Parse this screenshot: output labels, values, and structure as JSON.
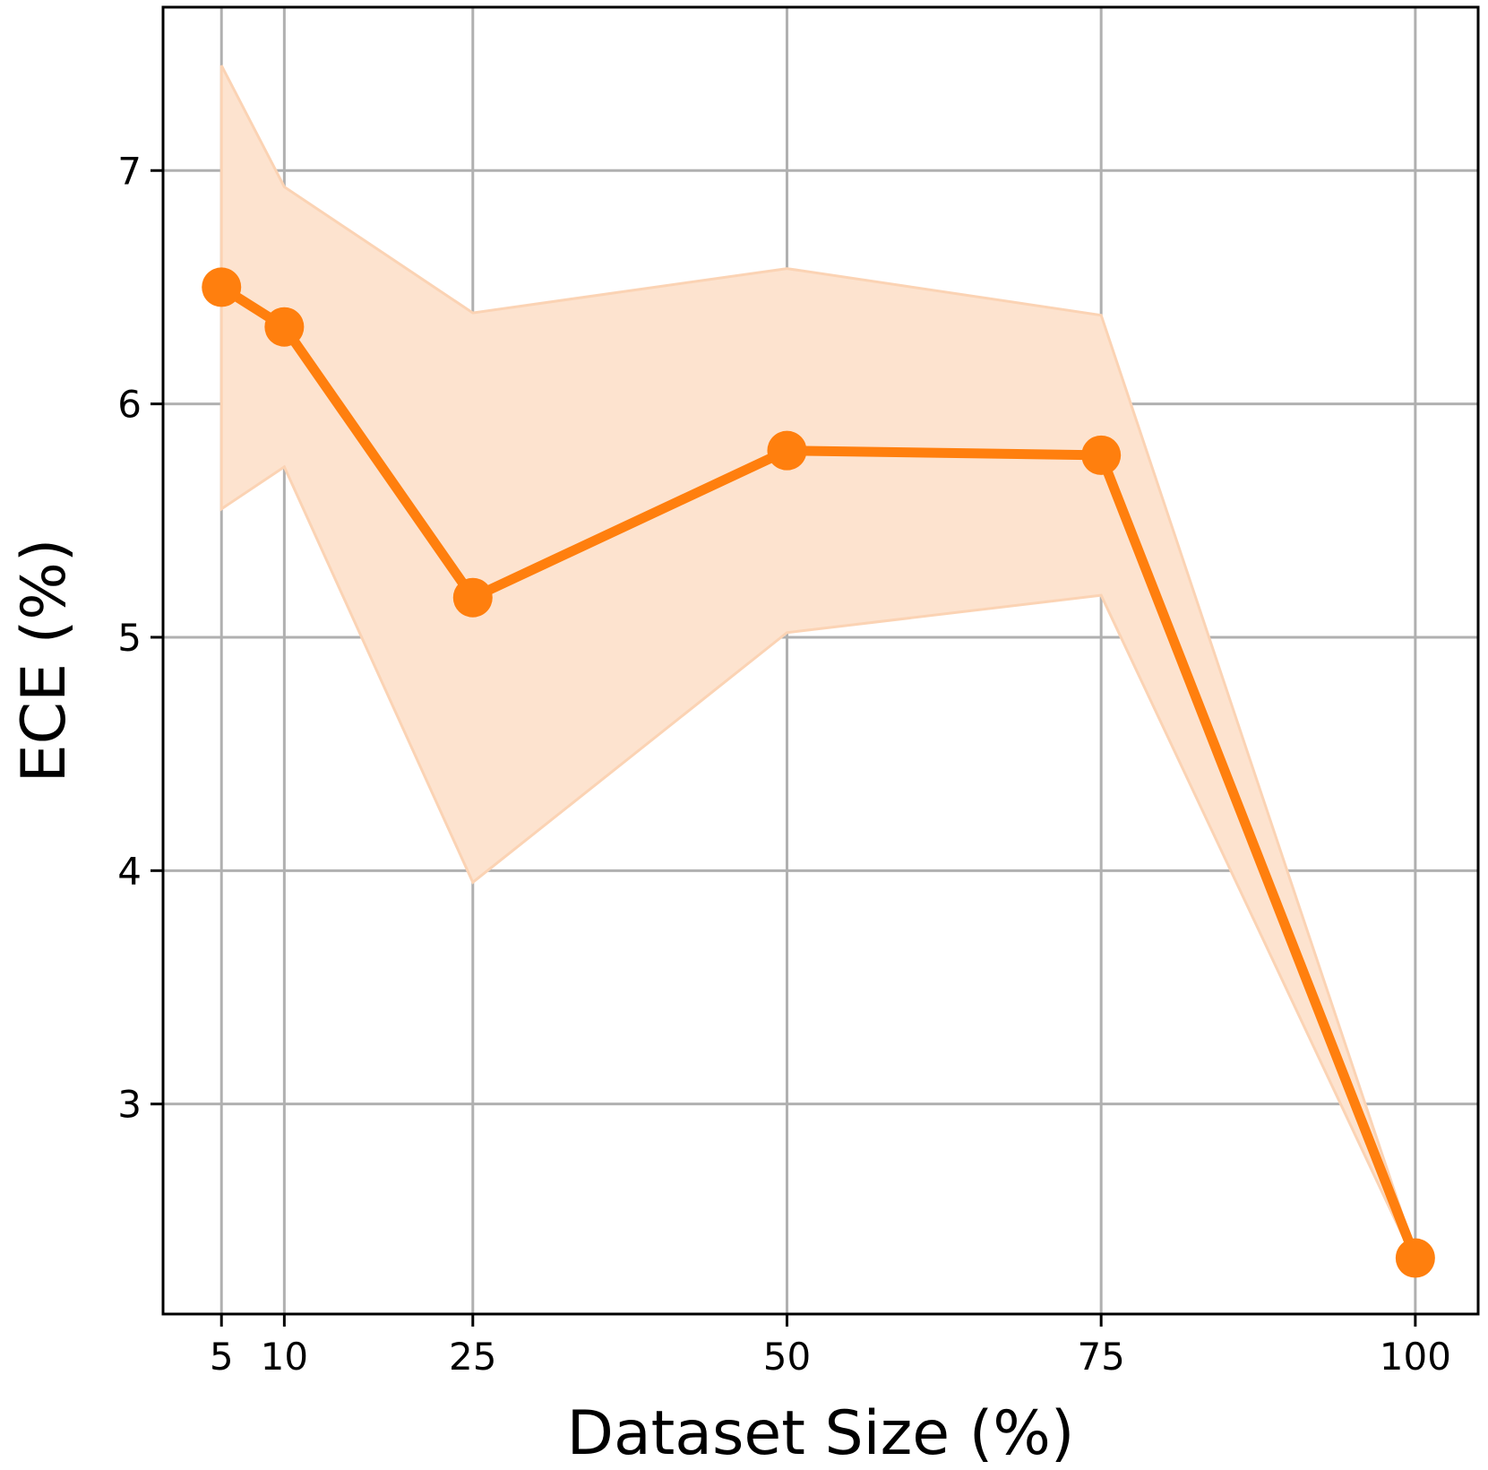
{
  "chart_data": {
    "type": "line",
    "title": "",
    "xlabel": "Dataset Size (%)",
    "ylabel": "ECE (%)",
    "x": [
      5,
      10,
      25,
      50,
      75,
      100
    ],
    "x_tick_labels": [
      "5",
      "10",
      "25",
      "50",
      "75",
      "100"
    ],
    "y_ticks": [
      3,
      4,
      5,
      6,
      7
    ],
    "y_tick_labels": [
      "3",
      "4",
      "5",
      "6",
      "7"
    ],
    "xlim": [
      0.35,
      105.0
    ],
    "ylim": [
      2.1,
      7.7
    ],
    "grid": true,
    "series": [
      {
        "color": "#ff7f0e",
        "marker": "circle",
        "values": [
          6.5,
          6.33,
          5.17,
          5.8,
          5.78,
          2.34
        ],
        "band_upper": [
          7.45,
          6.93,
          6.39,
          6.58,
          6.38,
          2.36
        ],
        "band_lower": [
          5.55,
          5.73,
          3.95,
          5.02,
          5.18,
          2.32
        ],
        "band_color": "#fde3cf"
      }
    ]
  }
}
